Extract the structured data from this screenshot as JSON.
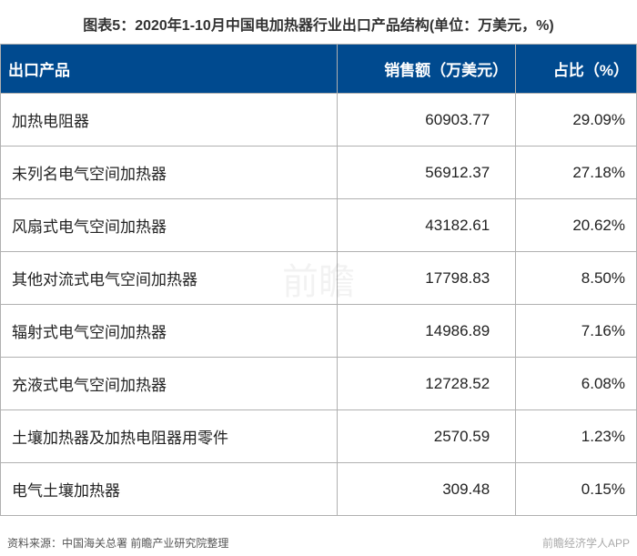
{
  "title": "图表5：2020年1-10月中国电加热器行业出口产品结构(单位：万美元，%)",
  "table": {
    "columns": [
      {
        "label": "出口产品",
        "class": "col-product"
      },
      {
        "label": "销售额（万美元）",
        "class": "col-sales"
      },
      {
        "label": "占比（%）",
        "class": "col-pct"
      }
    ],
    "rows": [
      {
        "product": "加热电阻器",
        "sales": "60903.77",
        "pct": "29.09%"
      },
      {
        "product": "未列名电气空间加热器",
        "sales": "56912.37",
        "pct": "27.18%"
      },
      {
        "product": "风扇式电气空间加热器",
        "sales": "43182.61",
        "pct": "20.62%"
      },
      {
        "product": "其他对流式电气空间加热器",
        "sales": "17798.83",
        "pct": "8.50%"
      },
      {
        "product": "辐射式电气空间加热器",
        "sales": "14986.89",
        "pct": "7.16%"
      },
      {
        "product": "充液式电气空间加热器",
        "sales": "12728.52",
        "pct": "6.08%"
      },
      {
        "product": "土壤加热器及加热电阻器用零件",
        "sales": "2570.59",
        "pct": "1.23%"
      },
      {
        "product": "电气土壤加热器",
        "sales": "309.48",
        "pct": "0.15%"
      }
    ]
  },
  "footer": {
    "source": "资料来源：中国海关总署 前瞻产业研究院整理",
    "app": "前瞻经济学人APP"
  },
  "watermark": "前瞻",
  "style": {
    "header_bg": "#004a8f",
    "header_fg": "#ffffff",
    "cell_bg": "#ffffff",
    "cell_fg": "#222222",
    "border_color": "#b0b0b0",
    "title_fontsize": 16,
    "header_fontsize": 17,
    "cell_fontsize": 17,
    "footer_fontsize": 12
  }
}
